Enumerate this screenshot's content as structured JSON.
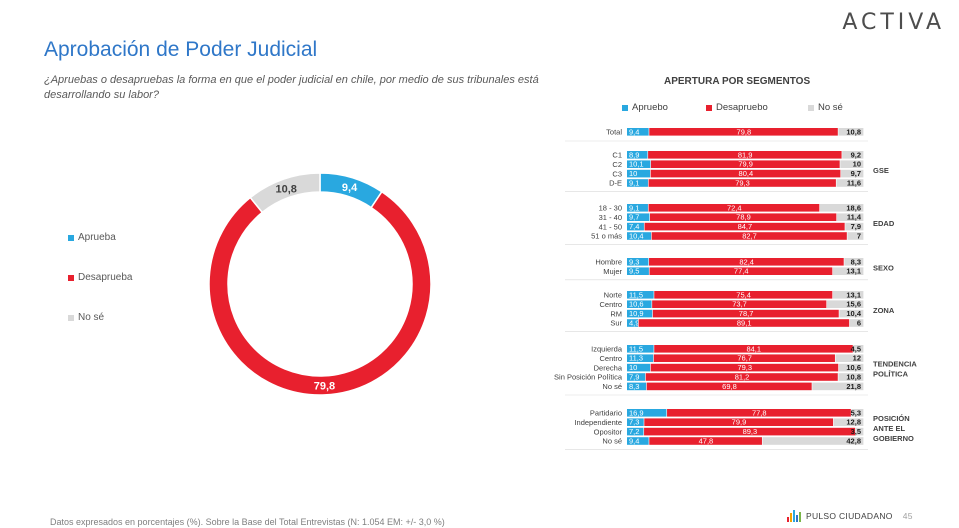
{
  "brand": "ACTIVA",
  "title": "Aprobación de Poder Judicial",
  "subtitle": "¿Apruebas o desapruebas la forma en que el poder judicial en chile, por medio de sus tribunales está desarrollando su labor?",
  "colors": {
    "aprueba": "#29a8e0",
    "desaprueba": "#e8202e",
    "nose": "#d9d9d9"
  },
  "chart_data": [
    {
      "type": "pie",
      "labels": [
        "Aprueba",
        "Desaprueba",
        "No sé"
      ],
      "values": [
        9.4,
        79.8,
        10.8
      ],
      "legend": "left"
    },
    {
      "type": "bar",
      "title": "APERTURA POR SEGMENTOS",
      "stacked": true,
      "orientation": "horizontal",
      "legend": "top",
      "series_names": [
        "Apruebo",
        "Desapruebo",
        "No sé"
      ],
      "groups": [
        {
          "label": "",
          "rows": [
            {
              "label": "Total",
              "values": [
                9.4,
                79.8,
                10.8
              ]
            }
          ]
        },
        {
          "label": "GSE",
          "rows": [
            {
              "label": "C1",
              "values": [
                8.9,
                81.9,
                9.2
              ]
            },
            {
              "label": "C2",
              "values": [
                10.1,
                79.9,
                10
              ]
            },
            {
              "label": "C3",
              "values": [
                10,
                80.4,
                9.7
              ]
            },
            {
              "label": "D-E",
              "values": [
                9.1,
                79.3,
                11.6
              ]
            }
          ]
        },
        {
          "label": "EDAD",
          "rows": [
            {
              "label": "18 - 30",
              "values": [
                9.1,
                72.4,
                18.6
              ]
            },
            {
              "label": "31 - 40",
              "values": [
                9.7,
                78.9,
                11.4
              ]
            },
            {
              "label": "41 - 50",
              "values": [
                7.4,
                84.7,
                7.9
              ]
            },
            {
              "label": "51 o más",
              "values": [
                10.4,
                82.7,
                7
              ]
            }
          ]
        },
        {
          "label": "SEXO",
          "rows": [
            {
              "label": "Hombre",
              "values": [
                9.3,
                82.4,
                8.3
              ]
            },
            {
              "label": "Mujer",
              "values": [
                9.5,
                77.4,
                13.1
              ]
            }
          ]
        },
        {
          "label": "ZONA",
          "rows": [
            {
              "label": "Norte",
              "values": [
                11.5,
                75.4,
                13.1
              ]
            },
            {
              "label": "Centro",
              "values": [
                10.6,
                73.7,
                15.6
              ]
            },
            {
              "label": "RM",
              "values": [
                10.9,
                78.7,
                10.4
              ]
            },
            {
              "label": "Sur",
              "values": [
                4.9,
                89.1,
                6
              ]
            }
          ]
        },
        {
          "label": "TENDENCIA POLÍTICA",
          "rows": [
            {
              "label": "Izquierda",
              "values": [
                11.5,
                84.1,
                4.5
              ]
            },
            {
              "label": "Centro",
              "values": [
                11.3,
                76.7,
                12
              ]
            },
            {
              "label": "Derecha",
              "values": [
                10,
                79.3,
                10.6
              ]
            },
            {
              "label": "Sin Posición Política",
              "values": [
                7.9,
                81.2,
                10.8
              ]
            },
            {
              "label": "No sé",
              "values": [
                8.3,
                69.8,
                21.8
              ]
            }
          ]
        },
        {
          "label": "POSICIÓN ANTE EL GOBIERNO",
          "rows": [
            {
              "label": "Partidario",
              "values": [
                16.9,
                77.8,
                5.3
              ]
            },
            {
              "label": "Independiente",
              "values": [
                7.3,
                79.9,
                12.8
              ]
            },
            {
              "label": "Opositor",
              "values": [
                7.2,
                89.3,
                3.5
              ]
            },
            {
              "label": "No sé",
              "values": [
                9.4,
                47.8,
                42.8
              ]
            }
          ]
        }
      ]
    }
  ],
  "footer": "Datos expresados en porcentajes (%). Sobre la Base del Total Entrevistas (N: 1.054  EM: +/- 3,0 %)",
  "pulso_label": "PULSO CIUDADANO",
  "page_number": "45"
}
